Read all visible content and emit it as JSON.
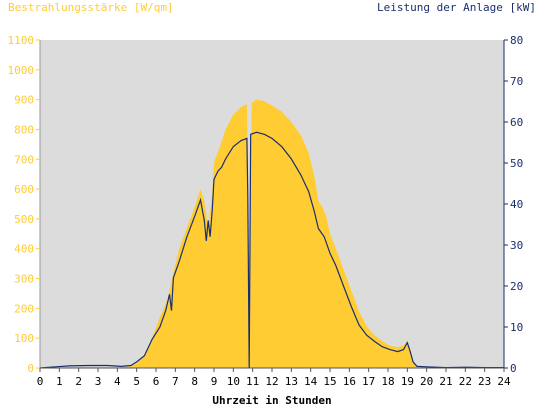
{
  "chart_data": {
    "type": "area",
    "left_axis": {
      "label": "Bestrahlungsstärke [W/qm]",
      "ylim": [
        0,
        1100
      ],
      "ticks": [
        0,
        100,
        200,
        300,
        400,
        500,
        600,
        700,
        800,
        900,
        1000,
        1100
      ],
      "color": "#ffcc33"
    },
    "right_axis": {
      "label": "Leistung der Anlage [kW]",
      "ylim": [
        0,
        80
      ],
      "ticks": [
        0,
        10,
        20,
        30,
        40,
        50,
        60,
        70,
        80
      ],
      "color": "#1a2f6e"
    },
    "x_axis": {
      "label": "Uhrzeit in Stunden",
      "xlim": [
        0,
        24
      ],
      "ticks": [
        0,
        1,
        2,
        3,
        4,
        5,
        6,
        7,
        8,
        9,
        10,
        11,
        12,
        13,
        14,
        15,
        16,
        17,
        18,
        19,
        20,
        21,
        22,
        23,
        24
      ]
    },
    "grid": false,
    "plot_background": "#dcdcdc",
    "series": [
      {
        "axis": "left",
        "style": "filled-area",
        "color": "#ffcc33",
        "points": [
          [
            0,
            0
          ],
          [
            1,
            2
          ],
          [
            2,
            3
          ],
          [
            3,
            3
          ],
          [
            4,
            2
          ],
          [
            4.6,
            5
          ],
          [
            5,
            15
          ],
          [
            5.4,
            40
          ],
          [
            5.8,
            100
          ],
          [
            6.2,
            170
          ],
          [
            6.6,
            230
          ],
          [
            6.9,
            320
          ],
          [
            7.2,
            400
          ],
          [
            7.6,
            470
          ],
          [
            8.0,
            540
          ],
          [
            8.3,
            600
          ],
          [
            8.5,
            560
          ],
          [
            8.7,
            470
          ],
          [
            8.9,
            580
          ],
          [
            9.0,
            690
          ],
          [
            9.3,
            740
          ],
          [
            9.6,
            800
          ],
          [
            10.0,
            850
          ],
          [
            10.4,
            875
          ],
          [
            10.7,
            885
          ],
          [
            10.85,
            40
          ],
          [
            10.95,
            890
          ],
          [
            11.2,
            900
          ],
          [
            11.6,
            895
          ],
          [
            12.0,
            880
          ],
          [
            12.5,
            860
          ],
          [
            13.0,
            825
          ],
          [
            13.5,
            780
          ],
          [
            13.9,
            720
          ],
          [
            14.2,
            640
          ],
          [
            14.4,
            560
          ],
          [
            14.6,
            540
          ],
          [
            14.8,
            510
          ],
          [
            15.0,
            450
          ],
          [
            15.3,
            400
          ],
          [
            15.7,
            330
          ],
          [
            16.1,
            260
          ],
          [
            16.5,
            190
          ],
          [
            16.9,
            140
          ],
          [
            17.3,
            110
          ],
          [
            17.7,
            90
          ],
          [
            18.1,
            75
          ],
          [
            18.5,
            70
          ],
          [
            18.8,
            75
          ],
          [
            19.0,
            90
          ],
          [
            19.15,
            65
          ],
          [
            19.3,
            20
          ],
          [
            19.5,
            8
          ],
          [
            20,
            5
          ],
          [
            20.5,
            3
          ],
          [
            21,
            2
          ],
          [
            22,
            2
          ],
          [
            23,
            2
          ],
          [
            24,
            2
          ]
        ]
      },
      {
        "axis": "right",
        "style": "line",
        "color": "#1a2f6e",
        "points": [
          [
            0,
            0
          ],
          [
            0.8,
            0.3
          ],
          [
            1.5,
            0.5
          ],
          [
            2.5,
            0.6
          ],
          [
            3.5,
            0.6
          ],
          [
            4.2,
            0.4
          ],
          [
            4.7,
            0.6
          ],
          [
            5.0,
            1.5
          ],
          [
            5.4,
            3
          ],
          [
            5.8,
            7
          ],
          [
            6.2,
            10
          ],
          [
            6.5,
            14
          ],
          [
            6.7,
            18
          ],
          [
            6.8,
            14
          ],
          [
            6.9,
            22
          ],
          [
            7.2,
            26
          ],
          [
            7.6,
            32
          ],
          [
            8.0,
            37
          ],
          [
            8.3,
            41
          ],
          [
            8.5,
            36
          ],
          [
            8.6,
            31
          ],
          [
            8.7,
            36
          ],
          [
            8.8,
            32
          ],
          [
            8.9,
            38
          ],
          [
            9.0,
            46
          ],
          [
            9.2,
            48
          ],
          [
            9.4,
            49
          ],
          [
            9.6,
            51
          ],
          [
            10.0,
            54
          ],
          [
            10.4,
            55.5
          ],
          [
            10.7,
            56
          ],
          [
            10.75,
            42
          ],
          [
            10.82,
            0
          ],
          [
            10.9,
            57
          ],
          [
            11.2,
            57.5
          ],
          [
            11.6,
            57
          ],
          [
            12.0,
            56
          ],
          [
            12.5,
            54
          ],
          [
            13.0,
            51
          ],
          [
            13.5,
            47
          ],
          [
            13.9,
            43
          ],
          [
            14.2,
            38
          ],
          [
            14.4,
            34
          ],
          [
            14.7,
            32
          ],
          [
            15.0,
            28
          ],
          [
            15.3,
            25
          ],
          [
            15.7,
            20
          ],
          [
            16.1,
            15
          ],
          [
            16.5,
            10.5
          ],
          [
            16.9,
            8
          ],
          [
            17.3,
            6.5
          ],
          [
            17.7,
            5.2
          ],
          [
            18.1,
            4.5
          ],
          [
            18.5,
            4
          ],
          [
            18.8,
            4.5
          ],
          [
            19.0,
            6.2
          ],
          [
            19.15,
            4
          ],
          [
            19.3,
            1.5
          ],
          [
            19.5,
            0.4
          ],
          [
            20,
            0.3
          ],
          [
            20.5,
            0.2
          ],
          [
            21,
            0.1
          ],
          [
            22,
            0.2
          ],
          [
            23,
            0.1
          ],
          [
            24,
            0.1
          ]
        ]
      }
    ]
  }
}
